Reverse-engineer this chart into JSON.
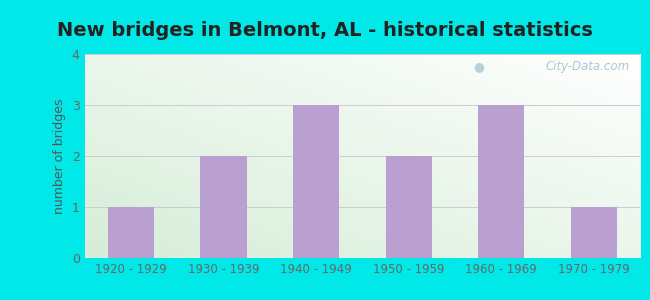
{
  "title": "New bridges in Belmont, AL - historical statistics",
  "categories": [
    "1920 - 1929",
    "1930 - 1939",
    "1940 - 1949",
    "1950 - 1959",
    "1960 - 1969",
    "1970 - 1979"
  ],
  "values": [
    1,
    2,
    3,
    2,
    3,
    1
  ],
  "bar_color": "#b9a0d0",
  "ylabel": "number of bridges",
  "ylim": [
    0,
    4
  ],
  "yticks": [
    0,
    1,
    2,
    3,
    4
  ],
  "background_outer": "#00e8e8",
  "background_plot_topleft": "#d6edd8",
  "background_plot_bottomright": "#ffffff",
  "title_fontsize": 14,
  "axis_label_color": "#555555",
  "tick_label_color": "#666666",
  "watermark_text": "City-Data.com",
  "bar_width": 0.5,
  "grid_color": "#cccccc",
  "title_color": "#222222"
}
